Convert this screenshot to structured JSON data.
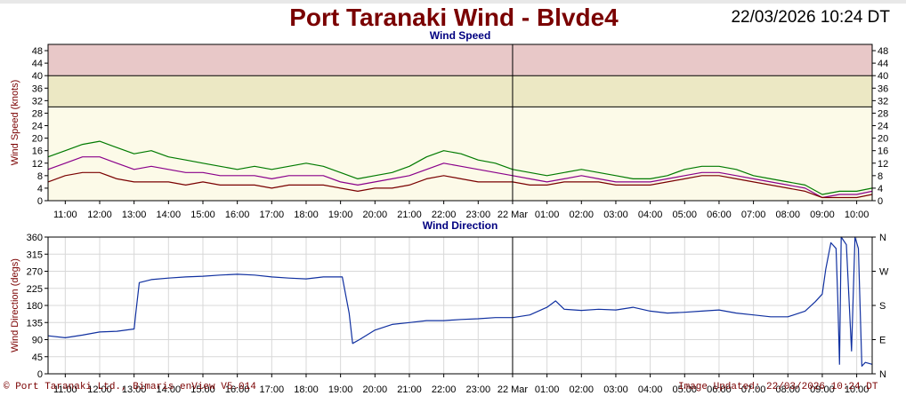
{
  "header": {
    "title": "Port Taranaki Wind - Blvde4",
    "timestamp": "22/03/2026 10:24 DT"
  },
  "footer": {
    "copyright": "© Port Taranaki Ltd., Bimaris enView V5.014",
    "updated": "Image Updated: 22/03/2026 10:24 DT"
  },
  "colors": {
    "title": "#7a0000",
    "gust": "#007a00",
    "mean": "#8a008a",
    "lull": "#7a0000",
    "direction": "#1030a0",
    "band_red": "#e8c8c8",
    "band_yellow": "#ece8c4",
    "plot_bg": "#fcfae8"
  },
  "chart_data": [
    {
      "type": "line",
      "title": "Wind Speed",
      "ylabel": "Wind Speed (knots)",
      "xlabel": "",
      "ylim": [
        0,
        50
      ],
      "yticks": [
        0,
        4,
        8,
        12,
        16,
        20,
        24,
        28,
        32,
        36,
        40,
        44,
        48
      ],
      "xlim": [
        10.5,
        34.45
      ],
      "xticks": [
        {
          "x": 11,
          "label": "11:00"
        },
        {
          "x": 12,
          "label": "12:00"
        },
        {
          "x": 13,
          "label": "13:00"
        },
        {
          "x": 14,
          "label": "14:00"
        },
        {
          "x": 15,
          "label": "15:00"
        },
        {
          "x": 16,
          "label": "16:00"
        },
        {
          "x": 17,
          "label": "17:00"
        },
        {
          "x": 18,
          "label": "18:00"
        },
        {
          "x": 19,
          "label": "19:00"
        },
        {
          "x": 20,
          "label": "20:00"
        },
        {
          "x": 21,
          "label": "21:00"
        },
        {
          "x": 22,
          "label": "22:00"
        },
        {
          "x": 23,
          "label": "23:00"
        },
        {
          "x": 24,
          "label": "22 Mar"
        },
        {
          "x": 25,
          "label": "01:00"
        },
        {
          "x": 26,
          "label": "02:00"
        },
        {
          "x": 27,
          "label": "03:00"
        },
        {
          "x": 28,
          "label": "04:00"
        },
        {
          "x": 29,
          "label": "05:00"
        },
        {
          "x": 30,
          "label": "06:00"
        },
        {
          "x": 31,
          "label": "07:00"
        },
        {
          "x": 32,
          "label": "08:00"
        },
        {
          "x": 33,
          "label": "09:00"
        },
        {
          "x": 34,
          "label": "10:00"
        }
      ],
      "bands": [
        {
          "from": 40,
          "to": 50,
          "color": "#e8c8c8"
        },
        {
          "from": 30,
          "to": 40,
          "color": "#ece8c4"
        }
      ],
      "threshold_lines": [
        30,
        40
      ],
      "day_marker": 24,
      "grid": false,
      "series": [
        {
          "key": "gust",
          "color": "#007a00",
          "points": [
            [
              10.5,
              14
            ],
            [
              11,
              16
            ],
            [
              11.5,
              18
            ],
            [
              12,
              19
            ],
            [
              12.5,
              17
            ],
            [
              13,
              15
            ],
            [
              13.5,
              16
            ],
            [
              14,
              14
            ],
            [
              14.5,
              13
            ],
            [
              15,
              12
            ],
            [
              15.5,
              11
            ],
            [
              16,
              10
            ],
            [
              16.5,
              11
            ],
            [
              17,
              10
            ],
            [
              17.5,
              11
            ],
            [
              18,
              12
            ],
            [
              18.5,
              11
            ],
            [
              19,
              9
            ],
            [
              19.5,
              7
            ],
            [
              20,
              8
            ],
            [
              20.5,
              9
            ],
            [
              21,
              11
            ],
            [
              21.5,
              14
            ],
            [
              22,
              16
            ],
            [
              22.5,
              15
            ],
            [
              23,
              13
            ],
            [
              23.5,
              12
            ],
            [
              24,
              10
            ],
            [
              24.5,
              9
            ],
            [
              25,
              8
            ],
            [
              25.5,
              9
            ],
            [
              26,
              10
            ],
            [
              26.5,
              9
            ],
            [
              27,
              8
            ],
            [
              27.5,
              7
            ],
            [
              28,
              7
            ],
            [
              28.5,
              8
            ],
            [
              29,
              10
            ],
            [
              29.5,
              11
            ],
            [
              30,
              11
            ],
            [
              30.5,
              10
            ],
            [
              31,
              8
            ],
            [
              31.5,
              7
            ],
            [
              32,
              6
            ],
            [
              32.5,
              5
            ],
            [
              33,
              2
            ],
            [
              33.5,
              3
            ],
            [
              34,
              3
            ],
            [
              34.45,
              4
            ]
          ]
        },
        {
          "key": "mean",
          "color": "#8a008a",
          "points": [
            [
              10.5,
              10
            ],
            [
              11,
              12
            ],
            [
              11.5,
              14
            ],
            [
              12,
              14
            ],
            [
              12.5,
              12
            ],
            [
              13,
              10
            ],
            [
              13.5,
              11
            ],
            [
              14,
              10
            ],
            [
              14.5,
              9
            ],
            [
              15,
              9
            ],
            [
              15.5,
              8
            ],
            [
              16,
              8
            ],
            [
              16.5,
              8
            ],
            [
              17,
              7
            ],
            [
              17.5,
              8
            ],
            [
              18,
              8
            ],
            [
              18.5,
              8
            ],
            [
              19,
              6
            ],
            [
              19.5,
              5
            ],
            [
              20,
              6
            ],
            [
              20.5,
              7
            ],
            [
              21,
              8
            ],
            [
              21.5,
              10
            ],
            [
              22,
              12
            ],
            [
              22.5,
              11
            ],
            [
              23,
              10
            ],
            [
              23.5,
              9
            ],
            [
              24,
              8
            ],
            [
              24.5,
              7
            ],
            [
              25,
              6
            ],
            [
              25.5,
              7
            ],
            [
              26,
              8
            ],
            [
              26.5,
              7
            ],
            [
              27,
              6
            ],
            [
              27.5,
              6
            ],
            [
              28,
              6
            ],
            [
              28.5,
              7
            ],
            [
              29,
              8
            ],
            [
              29.5,
              9
            ],
            [
              30,
              9
            ],
            [
              30.5,
              8
            ],
            [
              31,
              7
            ],
            [
              31.5,
              6
            ],
            [
              32,
              5
            ],
            [
              32.5,
              4
            ],
            [
              33,
              1
            ],
            [
              33.5,
              2
            ],
            [
              34,
              2
            ],
            [
              34.45,
              3
            ]
          ]
        },
        {
          "key": "lull",
          "color": "#7a0000",
          "points": [
            [
              10.5,
              6
            ],
            [
              11,
              8
            ],
            [
              11.5,
              9
            ],
            [
              12,
              9
            ],
            [
              12.5,
              7
            ],
            [
              13,
              6
            ],
            [
              13.5,
              6
            ],
            [
              14,
              6
            ],
            [
              14.5,
              5
            ],
            [
              15,
              6
            ],
            [
              15.5,
              5
            ],
            [
              16,
              5
            ],
            [
              16.5,
              5
            ],
            [
              17,
              4
            ],
            [
              17.5,
              5
            ],
            [
              18,
              5
            ],
            [
              18.5,
              5
            ],
            [
              19,
              4
            ],
            [
              19.5,
              3
            ],
            [
              20,
              4
            ],
            [
              20.5,
              4
            ],
            [
              21,
              5
            ],
            [
              21.5,
              7
            ],
            [
              22,
              8
            ],
            [
              22.5,
              7
            ],
            [
              23,
              6
            ],
            [
              23.5,
              6
            ],
            [
              24,
              6
            ],
            [
              24.5,
              5
            ],
            [
              25,
              5
            ],
            [
              25.5,
              6
            ],
            [
              26,
              6
            ],
            [
              26.5,
              6
            ],
            [
              27,
              5
            ],
            [
              27.5,
              5
            ],
            [
              28,
              5
            ],
            [
              28.5,
              6
            ],
            [
              29,
              7
            ],
            [
              29.5,
              8
            ],
            [
              30,
              8
            ],
            [
              30.5,
              7
            ],
            [
              31,
              6
            ],
            [
              31.5,
              5
            ],
            [
              32,
              4
            ],
            [
              32.5,
              3
            ],
            [
              33,
              1
            ],
            [
              33.5,
              1
            ],
            [
              34,
              1
            ],
            [
              34.45,
              2
            ]
          ]
        }
      ]
    },
    {
      "type": "line",
      "title": "Wind Direction",
      "ylabel": "Wind Direction (degs)",
      "xlabel": "",
      "ylim": [
        0,
        360
      ],
      "yticks": [
        0,
        45,
        90,
        135,
        180,
        225,
        270,
        315,
        360
      ],
      "y2ticks": [
        {
          "value": 0,
          "label": "N"
        },
        {
          "value": 90,
          "label": "E"
        },
        {
          "value": 180,
          "label": "S"
        },
        {
          "value": 270,
          "label": "W"
        },
        {
          "value": 360,
          "label": "N"
        }
      ],
      "xlim": [
        10.5,
        34.45
      ],
      "day_marker": 24,
      "grid": true,
      "series": [
        {
          "key": "direction",
          "color": "#1030a0",
          "points": [
            [
              10.5,
              100
            ],
            [
              11,
              95
            ],
            [
              11.5,
              102
            ],
            [
              12,
              110
            ],
            [
              12.5,
              112
            ],
            [
              13,
              118
            ],
            [
              13.05,
              160
            ],
            [
              13.15,
              240
            ],
            [
              13.5,
              248
            ],
            [
              14,
              252
            ],
            [
              14.5,
              255
            ],
            [
              15,
              257
            ],
            [
              15.5,
              260
            ],
            [
              16,
              262
            ],
            [
              16.5,
              260
            ],
            [
              17,
              255
            ],
            [
              17.5,
              252
            ],
            [
              18,
              250
            ],
            [
              18.5,
              255
            ],
            [
              19,
              255
            ],
            [
              19.05,
              255
            ],
            [
              19.25,
              160
            ],
            [
              19.35,
              80
            ],
            [
              19.55,
              90
            ],
            [
              20,
              115
            ],
            [
              20.5,
              130
            ],
            [
              21,
              135
            ],
            [
              21.5,
              140
            ],
            [
              22,
              140
            ],
            [
              22.5,
              143
            ],
            [
              23,
              145
            ],
            [
              23.5,
              148
            ],
            [
              24,
              148
            ],
            [
              24.5,
              155
            ],
            [
              25,
              175
            ],
            [
              25.25,
              192
            ],
            [
              25.5,
              170
            ],
            [
              26,
              167
            ],
            [
              26.5,
              170
            ],
            [
              27,
              168
            ],
            [
              27.5,
              175
            ],
            [
              28,
              165
            ],
            [
              28.5,
              160
            ],
            [
              29,
              162
            ],
            [
              29.5,
              165
            ],
            [
              30,
              168
            ],
            [
              30.5,
              160
            ],
            [
              31,
              155
            ],
            [
              31.5,
              150
            ],
            [
              32,
              150
            ],
            [
              32.5,
              165
            ],
            [
              32.8,
              190
            ],
            [
              33,
              210
            ],
            [
              33.1,
              275
            ],
            [
              33.25,
              345
            ],
            [
              33.4,
              330
            ],
            [
              33.45,
              200
            ],
            [
              33.5,
              25
            ],
            [
              33.55,
              360
            ],
            [
              33.7,
              340
            ],
            [
              33.85,
              60
            ],
            [
              33.95,
              360
            ],
            [
              34.05,
              330
            ],
            [
              34.15,
              20
            ],
            [
              34.25,
              30
            ],
            [
              34.45,
              25
            ]
          ]
        }
      ]
    }
  ]
}
